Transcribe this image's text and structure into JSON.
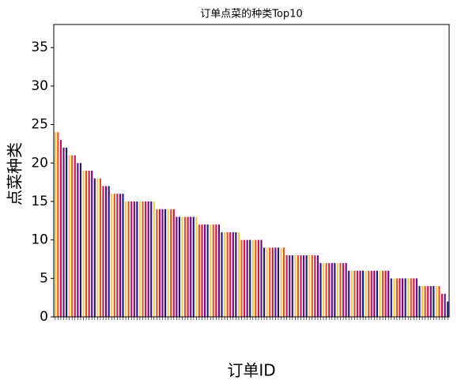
{
  "chart_data": {
    "type": "bar",
    "title": "订单点菜的种类Top10",
    "x_label": "订单ID",
    "y_label": "点菜种类",
    "ylim": [
      0,
      38
    ],
    "yticks": [
      0,
      5,
      10,
      15,
      20,
      25,
      30,
      35
    ],
    "colors": [
      "#f7c948",
      "#e8502a",
      "#c2185b",
      "#6a0d83",
      "#1f1f6e"
    ],
    "grid": false,
    "categories": [
      null,
      null,
      null,
      null,
      null,
      null,
      null,
      null,
      null,
      null,
      null,
      null,
      null,
      null,
      null,
      null,
      null,
      null,
      null,
      null,
      null,
      null,
      null,
      null,
      null,
      null,
      null,
      null,
      null,
      null,
      null,
      null,
      null,
      null,
      null,
      null,
      null,
      null,
      null,
      null,
      null,
      null,
      null,
      null,
      null,
      null,
      null,
      null,
      null,
      null,
      null,
      null,
      null,
      null,
      null,
      null,
      null,
      null,
      null,
      null,
      null,
      null,
      null,
      null,
      null,
      null,
      null,
      null,
      null,
      null,
      null,
      null,
      null,
      null,
      null,
      null,
      null,
      null,
      null,
      null,
      null,
      null,
      null,
      null,
      null,
      null,
      null,
      null,
      null,
      null,
      null,
      null,
      null,
      null,
      null,
      null,
      null,
      null,
      null,
      null,
      null,
      null,
      null,
      null,
      null,
      null,
      null,
      null,
      null,
      null,
      null,
      null,
      null,
      null,
      null,
      null,
      null,
      null,
      null,
      null,
      null,
      null,
      null,
      null,
      null,
      null,
      null,
      null,
      null,
      null,
      null,
      null,
      null,
      null,
      null,
      null,
      null,
      null,
      null,
      null
    ],
    "values": [
      24,
      24,
      23,
      22,
      22,
      21,
      21,
      21,
      20,
      20,
      19,
      19,
      19,
      19,
      18,
      18,
      18,
      17,
      17,
      17,
      16,
      16,
      16,
      16,
      16,
      15,
      15,
      15,
      15,
      15,
      15,
      15,
      15,
      15,
      15,
      15,
      14,
      14,
      14,
      14,
      14,
      14,
      14,
      13,
      13,
      13,
      13,
      13,
      13,
      13,
      13,
      12,
      12,
      12,
      12,
      12,
      12,
      12,
      12,
      11,
      11,
      11,
      11,
      11,
      11,
      11,
      10,
      10,
      10,
      10,
      10,
      10,
      10,
      10,
      9,
      9,
      9,
      9,
      9,
      9,
      9,
      9,
      8,
      8,
      8,
      8,
      8,
      8,
      8,
      8,
      8,
      8,
      8,
      8,
      7,
      7,
      7,
      7,
      7,
      7,
      7,
      7,
      7,
      7,
      6,
      6,
      6,
      6,
      6,
      6,
      6,
      6,
      6,
      6,
      6,
      6,
      6,
      6,
      6,
      5,
      5,
      5,
      5,
      5,
      5,
      5,
      5,
      5,
      5,
      4,
      4,
      4,
      4,
      4,
      4,
      4,
      4,
      3,
      3,
      2
    ]
  }
}
